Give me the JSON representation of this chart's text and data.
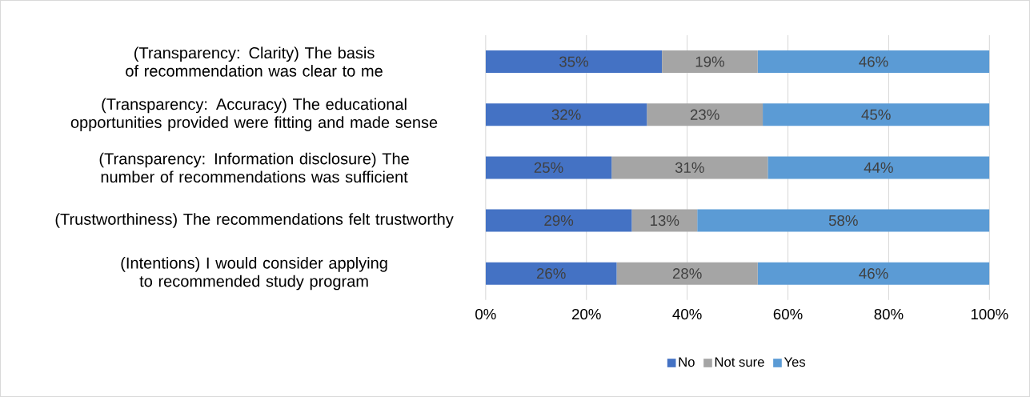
{
  "chart_data": {
    "type": "bar",
    "orientation": "horizontal",
    "stacked": true,
    "categories": [
      "(Transparency: Clarity) The basis of recommendation was clear to me",
      "(Transparency: Accuracy) The educational opportunities provided were fitting and made sense",
      "(Transparency: Information disclosure) The number of recommendations was sufficient",
      "(Trustworthiness) The recommendations felt trustworthy",
      "(Intentions) I would consider applying to recommended study program"
    ],
    "series": [
      {
        "name": "No",
        "color": "#4472c4",
        "values": [
          35,
          32,
          25,
          29,
          26
        ],
        "value_labels": [
          "35%",
          "32%",
          "25%",
          "29%",
          "26%"
        ]
      },
      {
        "name": "Not sure",
        "color": "#a5a5a5",
        "values": [
          19,
          23,
          31,
          13,
          28
        ],
        "value_labels": [
          "19%",
          "23%",
          "31%",
          "13%",
          "28%"
        ]
      },
      {
        "name": "Yes",
        "color": "#5b9bd5",
        "values": [
          46,
          45,
          44,
          58,
          46
        ],
        "value_labels": [
          "46%",
          "45%",
          "44%",
          "58%",
          "46%"
        ]
      }
    ],
    "xlim": [
      0,
      100
    ],
    "xticks": [
      {
        "value": 0,
        "label": "0%"
      },
      {
        "value": 20,
        "label": "20%"
      },
      {
        "value": 40,
        "label": "40%"
      },
      {
        "value": 60,
        "label": "60%"
      },
      {
        "value": 80,
        "label": "80%"
      },
      {
        "value": 100,
        "label": "100%"
      }
    ],
    "grid": "x",
    "legend": "bottom"
  }
}
